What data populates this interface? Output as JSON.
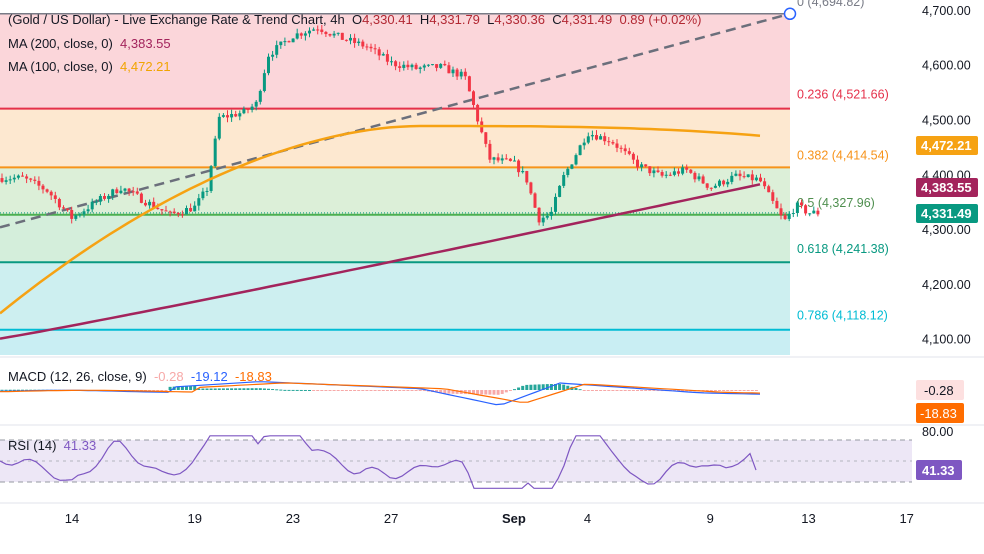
{
  "header": {
    "symbol": "(Gold / US Dollar) - Live Exchange Rate & Trend Chart, 4h",
    "o_label": "O",
    "o": "4,330.41",
    "h_label": "H",
    "h": "4,331.79",
    "l_label": "L",
    "l": "4,330.36",
    "c_label": "C",
    "c": "4,331.49",
    "change": "0.89 (+0.02%)"
  },
  "indicators": {
    "ma200": {
      "label": "MA (200, close, 0)",
      "value": "4,383.55"
    },
    "ma100": {
      "label": "MA (100, close, 0)",
      "value": "4,472.21"
    },
    "macd": {
      "label": "MACD (12, 26, close, 9)",
      "hist": "-0.28",
      "macd": "-19.12",
      "signal": "-18.83"
    },
    "rsi": {
      "label": "RSI (14)",
      "value": "41.33"
    }
  },
  "colors": {
    "up": "#089981",
    "down": "#f23645",
    "ma200": "#a3245c",
    "ma100": "#f6a213",
    "macd_line": "#2962ff",
    "signal_line": "#ff6d00",
    "rsi_line": "#7e57c2"
  },
  "chart_data": {
    "type": "candlestick",
    "timeframe": "4h",
    "x_tick_labels": [
      "14",
      "19",
      "23",
      "27",
      "Sep",
      "4",
      "9",
      "13",
      "17"
    ],
    "x_tick_dates": [
      "Aug 14",
      "Aug 19",
      "Aug 23",
      "Aug 27",
      "Sep 1",
      "Sep 4",
      "Sep 9",
      "Sep 13",
      "Sep 17"
    ],
    "y_tick_labels": [
      "4,100.00",
      "4,200.00",
      "4,300.00",
      "4,400.00",
      "4,500.00",
      "4,600.00",
      "4,700.00"
    ],
    "ylim": [
      4072,
      4720
    ],
    "fibonacci": [
      {
        "level": "0",
        "price": 4694.82,
        "label": "0 (4,694.82)"
      },
      {
        "level": "0.236",
        "price": 4521.66,
        "label": "0.236 (4,521.66)"
      },
      {
        "level": "0.382",
        "price": 4414.54,
        "label": "0.382 (4,414.54)"
      },
      {
        "level": "0.5",
        "price": 4327.96,
        "label": "0.5 (4,327.96)"
      },
      {
        "level": "0.618",
        "price": 4241.38,
        "label": "0.618 (4,241.38)"
      },
      {
        "level": "0.786",
        "price": 4118.12,
        "label": "0.786 (4,118.12)"
      }
    ],
    "price_labels": [
      {
        "name": "ma100",
        "value": "4,472.21",
        "price": 4472.21
      },
      {
        "name": "ma200",
        "value": "4,383.55",
        "price": 4383.55
      },
      {
        "name": "last",
        "value": "4,331.49",
        "price": 4331.49
      }
    ],
    "close_path": [
      [
        "Aug 12",
        4395
      ],
      [
        "Aug 13",
        4372
      ],
      [
        "Aug 14",
        4322
      ],
      [
        "Aug 15",
        4352
      ],
      [
        "Aug 16",
        4378
      ],
      [
        "Aug 17",
        4352
      ],
      [
        "Aug 18",
        4328
      ],
      [
        "Aug 19",
        4342
      ],
      [
        "Aug 19.5",
        4375
      ],
      [
        "Aug 20",
        4505
      ],
      [
        "Aug 21",
        4515
      ],
      [
        "Aug 21.5",
        4530
      ],
      [
        "Aug 22",
        4620
      ],
      [
        "Aug 23",
        4655
      ],
      [
        "Aug 24",
        4670
      ],
      [
        "Aug 25",
        4650
      ],
      [
        "Aug 26",
        4635
      ],
      [
        "Aug 27",
        4605
      ],
      [
        "Aug 28",
        4595
      ],
      [
        "Aug 29",
        4598
      ],
      [
        "Aug 30",
        4580
      ],
      [
        "Aug 31",
        4430
      ],
      [
        "Sep 1",
        4422
      ],
      [
        "Sep 1.5",
        4395
      ],
      [
        "Sep 2",
        4320
      ],
      [
        "Sep 2.5",
        4328
      ],
      [
        "Sep 3",
        4395
      ],
      [
        "Sep 4",
        4478
      ],
      [
        "Sep 5",
        4462
      ],
      [
        "Sep 6",
        4420
      ],
      [
        "Sep 7",
        4398
      ],
      [
        "Sep 8",
        4410
      ],
      [
        "Sep 9",
        4378
      ],
      [
        "Sep 10",
        4398
      ],
      [
        "Sep 11",
        4392
      ],
      [
        "Sep 12",
        4315
      ],
      [
        "Sep 12.5",
        4345
      ],
      [
        "Sep 13",
        4331.49
      ]
    ],
    "series": [
      {
        "name": "MA (200, close, 0)",
        "start": 4102,
        "end": 4383.55
      },
      {
        "name": "MA (100, close, 0)",
        "start": 4148,
        "peak": 4490,
        "end": 4472.21
      }
    ],
    "macd_axis": [],
    "rsi_axis": [
      "80.00"
    ],
    "rsi_last": 41.33
  }
}
